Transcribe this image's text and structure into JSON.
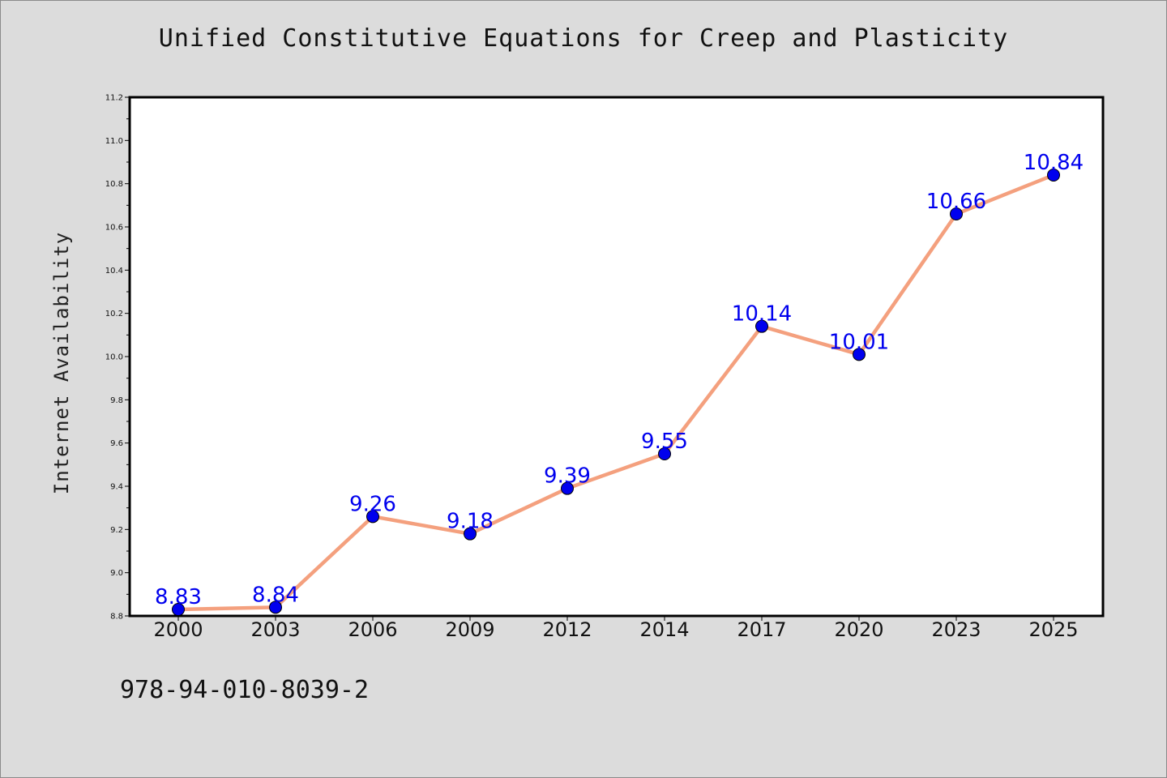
{
  "chart_data": {
    "type": "line",
    "title": "Unified Constitutive Equations for Creep and Plasticity",
    "xlabel": "",
    "ylabel": "Internet Availability",
    "categories": [
      "2000",
      "2003",
      "2006",
      "2009",
      "2012",
      "2014",
      "2017",
      "2020",
      "2023",
      "2025"
    ],
    "series": [
      {
        "values": [
          8.83,
          8.84,
          9.26,
          9.18,
          9.39,
          9.55,
          10.14,
          10.01,
          10.66,
          10.84
        ],
        "line_color": "#f4a07e",
        "marker_color": "#0000ee"
      }
    ],
    "data_labels": [
      "8.83",
      "8.84",
      "9.26",
      "9.18",
      "9.39",
      "9.55",
      "10.14",
      "10.01",
      "10.66",
      "10.84"
    ],
    "ylim": [
      8.8,
      11.2
    ],
    "yticks": [
      "8.8",
      "9.0",
      "9.2",
      "9.4",
      "9.6",
      "9.8",
      "10.0",
      "10.2",
      "10.4",
      "10.6",
      "10.8",
      "11.0",
      "11.2"
    ],
    "grid": false,
    "legend": "none",
    "data_label_color": "#0000ee"
  },
  "footnote": "978-94-010-8039-2"
}
